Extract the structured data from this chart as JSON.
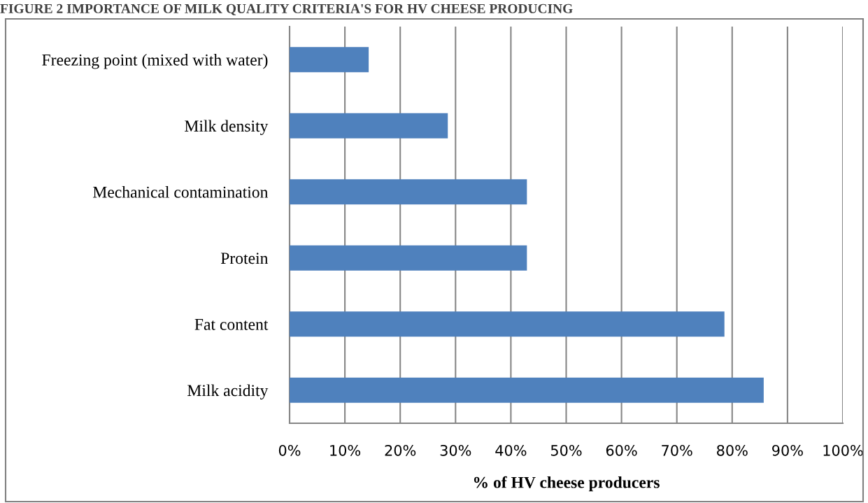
{
  "chart_data": {
    "type": "bar",
    "orientation": "horizontal",
    "title": "FIGURE 2 IMPORTANCE OF MILK QUALITY CRITERIA'S FOR HV CHEESE PRODUCING",
    "xlabel": "% of HV cheese producers",
    "categories": [
      "Freezing point (mixed with water)",
      "Milk density",
      "Mechanical contamination",
      "Protein",
      "Fat content",
      "Milk acidity"
    ],
    "values": [
      14.3,
      28.6,
      42.9,
      42.9,
      78.6,
      85.7
    ],
    "color": "#4f81bd",
    "xlim": [
      0,
      100
    ],
    "xticks": [
      {
        "value": 0,
        "label": "0%"
      },
      {
        "value": 10,
        "label": "10%"
      },
      {
        "value": 20,
        "label": "20%"
      },
      {
        "value": 30,
        "label": "30%"
      },
      {
        "value": 40,
        "label": "40%"
      },
      {
        "value": 50,
        "label": "50%"
      },
      {
        "value": 60,
        "label": "60%"
      },
      {
        "value": 70,
        "label": "70%"
      },
      {
        "value": 80,
        "label": "80%"
      },
      {
        "value": 90,
        "label": "90%"
      },
      {
        "value": 100,
        "label": "100%"
      }
    ],
    "grid": "x",
    "legend": false
  }
}
